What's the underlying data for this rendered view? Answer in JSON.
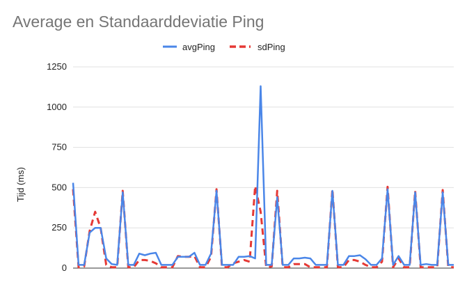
{
  "chart_data": {
    "type": "line",
    "title": "Average en Standaarddeviatie Ping",
    "xlabel": "",
    "ylabel": "Tijd (ms)",
    "ylim": [
      0,
      1250
    ],
    "yticks": [
      0,
      250,
      500,
      750,
      1000,
      1250
    ],
    "grid": true,
    "legend_position": "top",
    "x": [
      1,
      2,
      3,
      4,
      5,
      6,
      7,
      8,
      9,
      10,
      11,
      12,
      13,
      14,
      15,
      16,
      17,
      18,
      19,
      20,
      21,
      22,
      23,
      24,
      25,
      26,
      27,
      28,
      29,
      30,
      31,
      32,
      33,
      34,
      35,
      36,
      37,
      38,
      39,
      40,
      41,
      42,
      43,
      44,
      45,
      46,
      47,
      48,
      49,
      50,
      51,
      52,
      53,
      54,
      55,
      56,
      57,
      58,
      59,
      60,
      61,
      62,
      63,
      64,
      65,
      66,
      67,
      68,
      69,
      70
    ],
    "series": [
      {
        "name": "avgPing",
        "color": "#4a86e8",
        "dash": "solid",
        "values": [
          530,
          20,
          20,
          220,
          250,
          250,
          60,
          25,
          20,
          470,
          20,
          20,
          90,
          80,
          90,
          95,
          20,
          20,
          20,
          70,
          70,
          70,
          95,
          20,
          20,
          90,
          480,
          20,
          20,
          20,
          70,
          70,
          75,
          60,
          1130,
          20,
          20,
          440,
          20,
          20,
          60,
          60,
          65,
          60,
          20,
          20,
          20,
          480,
          20,
          20,
          75,
          75,
          80,
          55,
          20,
          20,
          60,
          490,
          20,
          75,
          20,
          20,
          470,
          20,
          25,
          20,
          20,
          470,
          20,
          20
        ]
      },
      {
        "name": "sdPing",
        "color": "#e53935",
        "dash": "dashed",
        "values": [
          490,
          5,
          10,
          230,
          350,
          250,
          20,
          5,
          5,
          480,
          5,
          5,
          50,
          50,
          45,
          30,
          5,
          5,
          5,
          75,
          70,
          70,
          75,
          5,
          5,
          70,
          490,
          5,
          5,
          30,
          40,
          50,
          40,
          510,
          350,
          5,
          10,
          480,
          5,
          5,
          25,
          25,
          25,
          5,
          5,
          5,
          5,
          490,
          5,
          5,
          50,
          50,
          40,
          20,
          5,
          5,
          40,
          505,
          5,
          60,
          5,
          5,
          480,
          5,
          5,
          5,
          5,
          485,
          5,
          5
        ]
      }
    ]
  }
}
